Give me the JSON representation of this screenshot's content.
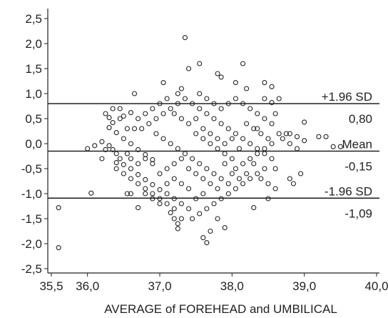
{
  "chart_data": {
    "type": "scatter",
    "title": "",
    "xlabel": "AVERAGE of FOREHEAD and UMBILICAL",
    "ylabel": "",
    "xlim": [
      35.5,
      40.0
    ],
    "ylim": [
      -2.5,
      2.6
    ],
    "x_ticks": [
      35.5,
      36.0,
      37.0,
      38.0,
      39.0,
      40.0
    ],
    "x_tick_labels": [
      "35,5",
      "36,0",
      "37,0",
      "38,0",
      "39,0",
      "40,0"
    ],
    "y_ticks": [
      -2.5,
      -2.0,
      -1.5,
      -1.0,
      -0.5,
      0.0,
      0.5,
      1.0,
      1.5,
      2.0,
      2.5
    ],
    "y_tick_labels": [
      "-2,5",
      "-2,0",
      "-1,5",
      "-1,0",
      "-0,5",
      "0,0",
      "0,5",
      "1,0",
      "1,5",
      "2,0",
      "2,5"
    ],
    "grid": false,
    "reference_lines": [
      {
        "name": "upper",
        "y": 0.8,
        "label_top": "+1.96 SD",
        "label_bottom": "0,80"
      },
      {
        "name": "mean",
        "y": -0.15,
        "label_top": "Mean",
        "label_bottom": "-0,15"
      },
      {
        "name": "lower",
        "y": -1.09,
        "label_top": "-1.96 SD",
        "label_bottom": "-1,09"
      }
    ],
    "series": [
      {
        "marker": "open-circle",
        "color": "#222222",
        "points": [
          [
            35.6,
            -1.28
          ],
          [
            35.6,
            -2.08
          ],
          [
            36.0,
            -0.1
          ],
          [
            36.05,
            -0.99
          ],
          [
            37.35,
            2.12
          ],
          [
            37.55,
            1.6
          ],
          [
            37.3,
            1.1
          ],
          [
            37.25,
            1.0
          ],
          [
            37.4,
            1.5
          ],
          [
            37.8,
            1.4
          ],
          [
            37.85,
            1.33
          ],
          [
            38.15,
            1.6
          ],
          [
            38.05,
            1.22
          ],
          [
            38.2,
            1.1
          ],
          [
            38.45,
            1.22
          ],
          [
            38.55,
            1.14
          ],
          [
            37.05,
            1.22
          ],
          [
            36.65,
            1.0
          ],
          [
            39.0,
            0.43
          ],
          [
            39.2,
            0.14
          ],
          [
            39.3,
            0.14
          ],
          [
            39.4,
            -0.06
          ],
          [
            39.5,
            -0.06
          ],
          [
            38.9,
            0.14
          ],
          [
            39.0,
            0.06
          ],
          [
            38.95,
            -0.6
          ],
          [
            38.8,
            -0.7
          ],
          [
            38.85,
            -0.8
          ],
          [
            38.6,
            -0.9
          ],
          [
            38.5,
            -1.1
          ],
          [
            38.3,
            -1.28
          ],
          [
            37.8,
            -1.5
          ],
          [
            37.7,
            -1.75
          ],
          [
            37.9,
            -1.68
          ],
          [
            37.6,
            -1.88
          ],
          [
            37.65,
            -1.98
          ],
          [
            37.25,
            -1.7
          ],
          [
            37.3,
            -1.5
          ],
          [
            36.7,
            -1.28
          ],
          [
            36.55,
            -1.0
          ],
          [
            36.4,
            -0.38
          ],
          [
            36.5,
            0.55
          ],
          [
            36.6,
            0.62
          ],
          [
            36.45,
            0.5
          ],
          [
            36.35,
            0.42
          ],
          [
            36.3,
            0.32
          ],
          [
            36.4,
            0.22
          ],
          [
            36.5,
            0.1
          ],
          [
            36.6,
            0.0
          ],
          [
            36.7,
            -0.12
          ],
          [
            36.8,
            -0.22
          ],
          [
            36.9,
            -0.32
          ],
          [
            36.55,
            -0.2
          ],
          [
            36.45,
            -0.3
          ],
          [
            36.35,
            -0.12
          ],
          [
            36.3,
            -0.04
          ],
          [
            36.4,
            -0.2
          ],
          [
            36.5,
            -0.42
          ],
          [
            36.6,
            -0.5
          ],
          [
            36.7,
            -0.62
          ],
          [
            36.8,
            -0.72
          ],
          [
            36.9,
            -0.82
          ],
          [
            37.0,
            -0.92
          ],
          [
            37.1,
            -1.0
          ],
          [
            37.2,
            -1.1
          ],
          [
            37.3,
            -1.2
          ],
          [
            37.4,
            -1.3
          ],
          [
            37.15,
            -1.38
          ],
          [
            37.2,
            -1.5
          ],
          [
            37.25,
            -1.6
          ],
          [
            36.75,
            0.3
          ],
          [
            36.85,
            0.4
          ],
          [
            36.95,
            0.5
          ],
          [
            37.05,
            0.6
          ],
          [
            37.15,
            0.7
          ],
          [
            37.25,
            0.8
          ],
          [
            37.35,
            0.9
          ],
          [
            37.45,
            0.8
          ],
          [
            37.55,
            0.7
          ],
          [
            37.65,
            0.6
          ],
          [
            37.75,
            0.5
          ],
          [
            37.85,
            0.4
          ],
          [
            37.95,
            0.3
          ],
          [
            38.05,
            0.2
          ],
          [
            38.15,
            0.1
          ],
          [
            38.25,
            0.0
          ],
          [
            38.35,
            -0.1
          ],
          [
            38.45,
            -0.2
          ],
          [
            38.55,
            -0.3
          ],
          [
            38.45,
            -0.5
          ],
          [
            38.35,
            -0.6
          ],
          [
            38.25,
            -0.7
          ],
          [
            38.15,
            -0.8
          ],
          [
            38.05,
            -0.9
          ],
          [
            37.95,
            -1.0
          ],
          [
            37.85,
            -1.1
          ],
          [
            37.75,
            -1.2
          ],
          [
            37.65,
            -1.3
          ],
          [
            37.55,
            -1.4
          ],
          [
            37.45,
            -1.5
          ],
          [
            36.95,
            0.2
          ],
          [
            37.05,
            0.1
          ],
          [
            37.15,
            0.0
          ],
          [
            37.25,
            -0.1
          ],
          [
            37.35,
            -0.2
          ],
          [
            37.45,
            -0.3
          ],
          [
            37.55,
            -0.4
          ],
          [
            37.65,
            -0.5
          ],
          [
            37.75,
            -0.6
          ],
          [
            37.85,
            -0.7
          ],
          [
            37.95,
            -0.8
          ],
          [
            38.05,
            -0.5
          ],
          [
            38.15,
            -0.4
          ],
          [
            38.25,
            -0.3
          ],
          [
            38.35,
            -0.2
          ],
          [
            38.45,
            -0.1
          ],
          [
            38.55,
            0.0
          ],
          [
            38.65,
            0.2
          ],
          [
            38.75,
            0.2
          ],
          [
            38.55,
            0.4
          ],
          [
            38.45,
            0.5
          ],
          [
            38.35,
            0.6
          ],
          [
            38.25,
            0.7
          ],
          [
            38.15,
            0.8
          ],
          [
            38.05,
            0.9
          ],
          [
            37.95,
            0.8
          ],
          [
            37.85,
            0.7
          ],
          [
            37.75,
            0.8
          ],
          [
            37.65,
            0.9
          ],
          [
            37.55,
            1.0
          ],
          [
            37.5,
            0.2
          ],
          [
            37.6,
            0.1
          ],
          [
            37.7,
            0.0
          ],
          [
            37.8,
            -0.1
          ],
          [
            37.9,
            -0.2
          ],
          [
            38.0,
            -0.3
          ],
          [
            38.1,
            -0.1
          ],
          [
            38.2,
            0.4
          ],
          [
            38.3,
            0.3
          ],
          [
            38.4,
            0.2
          ],
          [
            38.5,
            0.1
          ],
          [
            38.6,
            0.6
          ],
          [
            38.55,
            0.82
          ],
          [
            38.65,
            0.9
          ],
          [
            38.45,
            0.9
          ],
          [
            38.35,
            0.3
          ],
          [
            36.1,
            -0.04
          ],
          [
            36.2,
            0.04
          ],
          [
            36.25,
            -0.12
          ],
          [
            36.2,
            -0.3
          ],
          [
            36.3,
            0.52
          ],
          [
            36.35,
            0.7
          ],
          [
            36.25,
            0.6
          ],
          [
            36.45,
            0.7
          ],
          [
            36.65,
            0.3
          ],
          [
            36.55,
            0.3
          ],
          [
            36.7,
            0.5
          ],
          [
            36.8,
            0.6
          ],
          [
            36.9,
            0.7
          ],
          [
            37.0,
            0.8
          ],
          [
            37.1,
            0.9
          ],
          [
            37.2,
            0.6
          ],
          [
            37.3,
            0.5
          ],
          [
            37.4,
            0.4
          ],
          [
            37.5,
            0.5
          ],
          [
            37.6,
            0.3
          ],
          [
            37.7,
            0.2
          ],
          [
            37.8,
            0.1
          ],
          [
            37.9,
            0.0
          ],
          [
            38.0,
            0.1
          ],
          [
            36.6,
            -0.7
          ],
          [
            36.7,
            -0.8
          ],
          [
            36.8,
            -0.9
          ],
          [
            36.9,
            -1.0
          ],
          [
            37.0,
            -1.1
          ],
          [
            37.1,
            -1.2
          ],
          [
            37.2,
            -1.3
          ],
          [
            37.0,
            -0.6
          ],
          [
            37.1,
            -0.5
          ],
          [
            37.2,
            -0.4
          ],
          [
            37.3,
            -0.3
          ],
          [
            37.4,
            -0.5
          ],
          [
            37.5,
            -0.6
          ],
          [
            37.6,
            -0.7
          ],
          [
            37.7,
            -0.8
          ],
          [
            37.8,
            -0.9
          ],
          [
            37.5,
            -1.1
          ],
          [
            37.6,
            -1.0
          ],
          [
            37.4,
            -0.9
          ],
          [
            37.3,
            -0.8
          ],
          [
            37.2,
            -0.7
          ],
          [
            37.1,
            -0.8
          ],
          [
            36.9,
            -0.4
          ],
          [
            36.8,
            -0.3
          ],
          [
            36.7,
            -0.4
          ],
          [
            36.6,
            -0.3
          ],
          [
            36.5,
            -0.6
          ],
          [
            36.4,
            -0.5
          ],
          [
            36.6,
            -1.0
          ],
          [
            36.8,
            -1.0
          ],
          [
            37.0,
            -1.2
          ],
          [
            36.9,
            -1.1
          ],
          [
            38.4,
            -0.7
          ],
          [
            38.5,
            -0.8
          ],
          [
            38.6,
            -0.5
          ],
          [
            38.3,
            -0.4
          ],
          [
            38.2,
            -0.6
          ],
          [
            38.1,
            -0.7
          ],
          [
            38.0,
            -0.6
          ],
          [
            37.9,
            -0.4
          ],
          [
            38.7,
            0.1
          ],
          [
            38.8,
            0.0
          ],
          [
            38.9,
            -0.1
          ],
          [
            38.8,
            0.2
          ]
        ]
      }
    ]
  }
}
